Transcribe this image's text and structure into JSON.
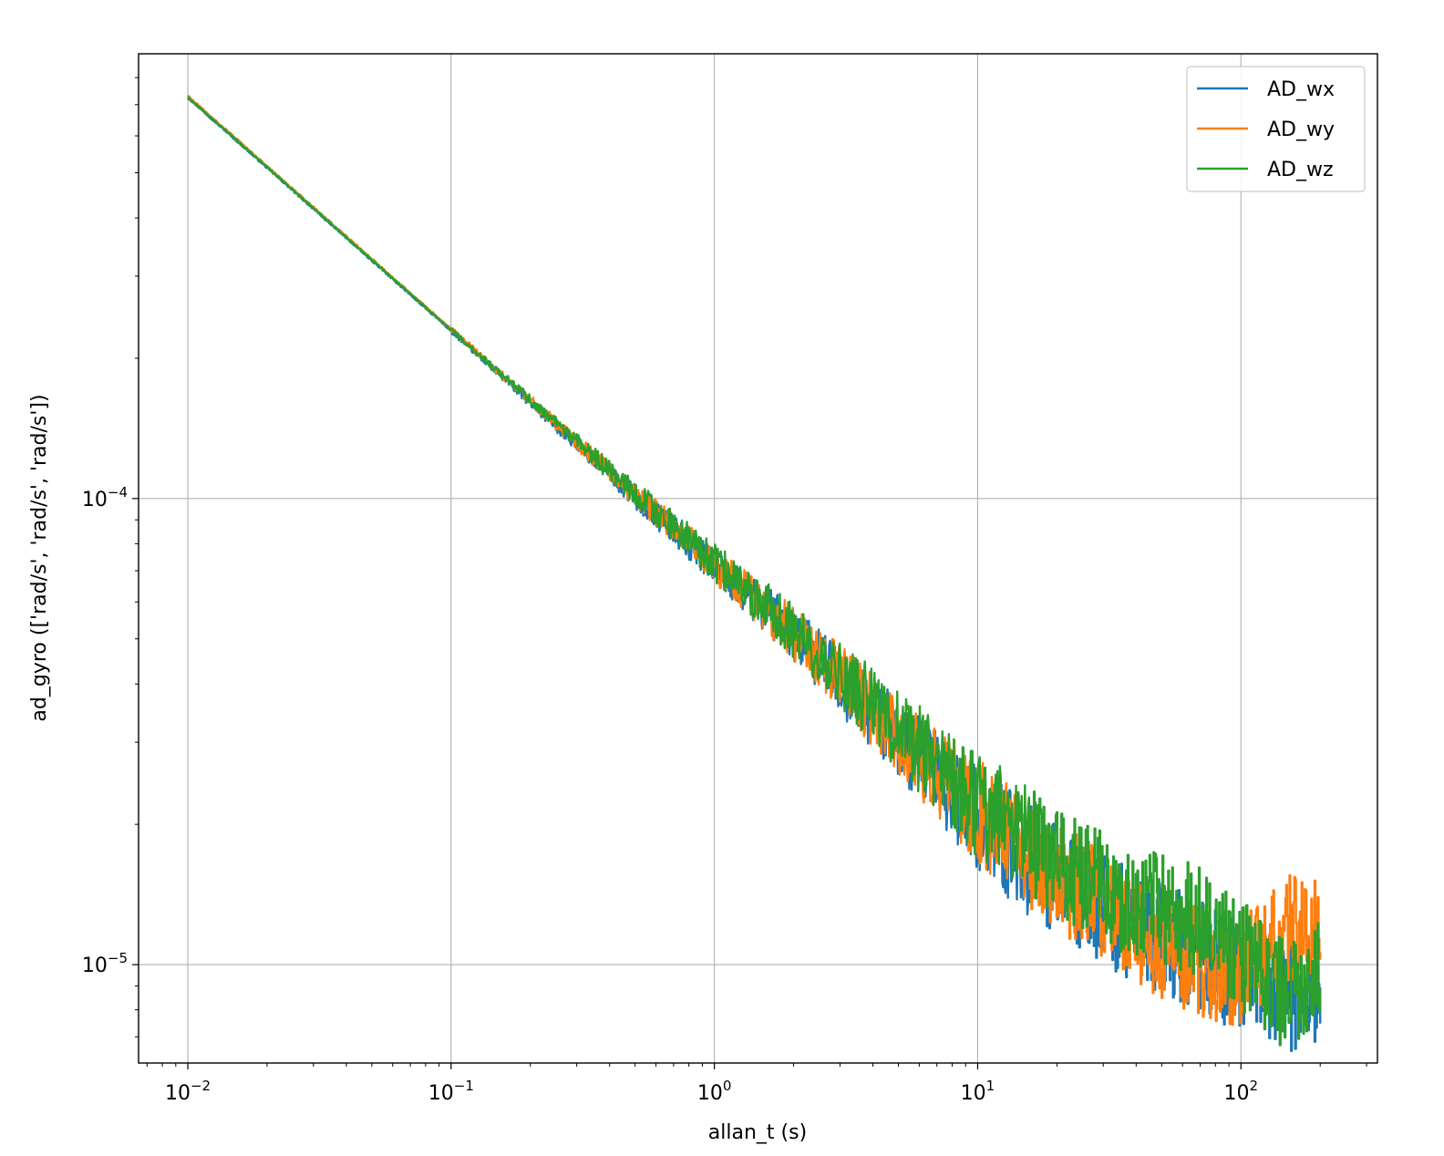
{
  "chart_data": {
    "type": "line",
    "title": "",
    "xlabel": "allan_t (s)",
    "ylabel": "ad_gyro (['rad/s', 'rad/s', 'rad/s'])",
    "xscale": "log",
    "yscale": "log",
    "xlim": [
      0.0065,
      330
    ],
    "ylim": [
      6.15e-06,
      0.0009
    ],
    "grid": true,
    "legend_position": "top-right",
    "x_ticks": [
      {
        "base": "10",
        "exp": "−2",
        "value": 0.01
      },
      {
        "base": "10",
        "exp": "−1",
        "value": 0.1
      },
      {
        "base": "10",
        "exp": "0",
        "value": 1
      },
      {
        "base": "10",
        "exp": "1",
        "value": 10
      },
      {
        "base": "10",
        "exp": "2",
        "value": 100
      }
    ],
    "y_ticks": [
      {
        "base": "10",
        "exp": "−4",
        "value": 0.0001
      },
      {
        "base": "10",
        "exp": "−5",
        "value": 1e-05
      }
    ],
    "series": [
      {
        "name": "AD_wx",
        "color": "#1f77b4",
        "x": [
          0.01,
          0.1,
          0.5,
          1,
          2,
          5,
          10,
          20,
          40,
          70,
          100,
          150,
          200
        ],
        "y": [
          0.000725,
          0.000229,
          0.000101,
          7.2e-05,
          5.1e-05,
          3.05e-05,
          2.05e-05,
          1.5e-05,
          1.2e-05,
          1.05e-05,
          9.3e-06,
          8.6e-06,
          8.55e-06
        ]
      },
      {
        "name": "AD_wy",
        "color": "#ff7f0e",
        "x": [
          0.01,
          0.1,
          0.5,
          1,
          2,
          5,
          10,
          20,
          40,
          70,
          100,
          150,
          200
        ],
        "y": [
          0.00073,
          0.000231,
          0.000102,
          7.25e-05,
          5.15e-05,
          3.1e-05,
          2.15e-05,
          1.55e-05,
          1.2e-05,
          1e-05,
          9.5e-06,
          1.18e-05,
          1.17e-05
        ]
      },
      {
        "name": "AD_wz",
        "color": "#2ca02c",
        "x": [
          0.01,
          0.1,
          0.5,
          1,
          2,
          5,
          10,
          20,
          40,
          70,
          100,
          150,
          200
        ],
        "y": [
          0.000727,
          0.00023,
          0.000103,
          7.3e-05,
          5.2e-05,
          3.2e-05,
          2.2e-05,
          1.65e-05,
          1.35e-05,
          1.25e-05,
          1.05e-05,
          8.4e-06,
          1.01e-05
        ]
      }
    ]
  }
}
